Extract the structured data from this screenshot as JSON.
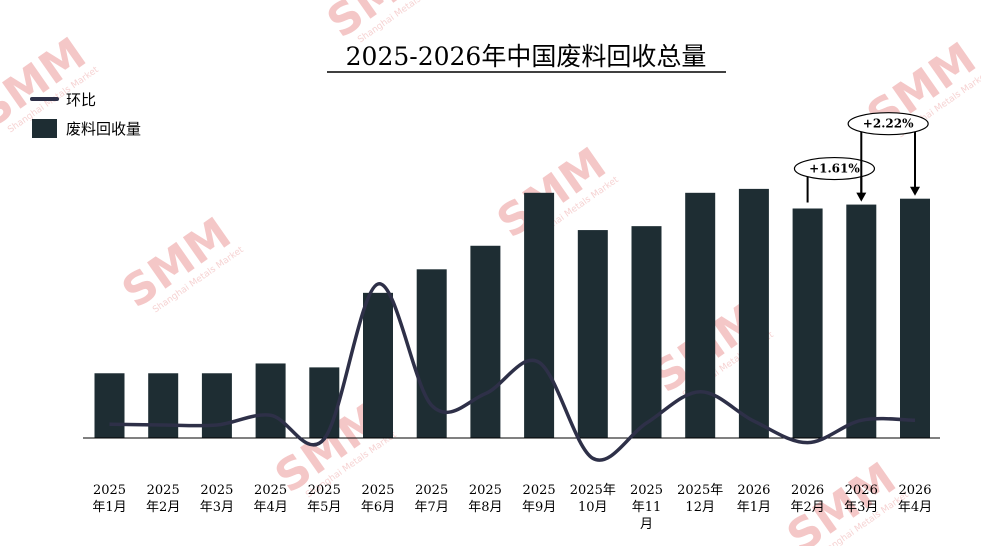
{
  "chart_data": {
    "type": "bar",
    "title": "2025-2026年中国废料回收总量",
    "xlabel": "",
    "ylabel": "",
    "legend": {
      "placement": "top-left"
    },
    "grid": false,
    "categories": [
      [
        "2025",
        "年1月"
      ],
      [
        "2025",
        "年2月"
      ],
      [
        "2025",
        "年3月"
      ],
      [
        "2025",
        "年4月"
      ],
      [
        "2025",
        "年5月"
      ],
      [
        "2025",
        "年6月"
      ],
      [
        "2025",
        "年7月"
      ],
      [
        "2025",
        "年8月"
      ],
      [
        "2025",
        "年9月"
      ],
      [
        "2025年",
        "10月"
      ],
      [
        "2025",
        "年11",
        "月"
      ],
      [
        "2025年",
        "12月"
      ],
      [
        "2026",
        "年1月"
      ],
      [
        "2026",
        "年2月"
      ],
      [
        "2026",
        "年3月"
      ],
      [
        "2026",
        "年4月"
      ]
    ],
    "series": [
      {
        "name": "废料回收量",
        "kind": "bar",
        "color": "#1e2d33",
        "values": [
          33,
          33,
          33,
          38,
          36,
          74,
          86,
          98,
          125,
          106,
          108,
          125,
          127,
          117,
          119,
          122
        ]
      },
      {
        "name": "环比",
        "kind": "line",
        "color": "#2e3048",
        "smooth": true,
        "values": [
          0.2,
          0,
          0,
          2.5,
          -3.5,
          36,
          5,
          8,
          16,
          -8.5,
          0.5,
          8.5,
          1,
          -4.5,
          1.2,
          1.2
        ]
      }
    ],
    "y_range": [
      0,
      130
    ],
    "line_range": [
      -12,
      36
    ],
    "annotations": [
      {
        "text": "+1.61%",
        "from_index": 13,
        "to_index": 14
      },
      {
        "text": "+2.22%",
        "from_index": 14,
        "to_index": 15
      }
    ]
  },
  "watermark": {
    "brand": "SMM",
    "subtitle": "Shanghai Metals Market"
  }
}
